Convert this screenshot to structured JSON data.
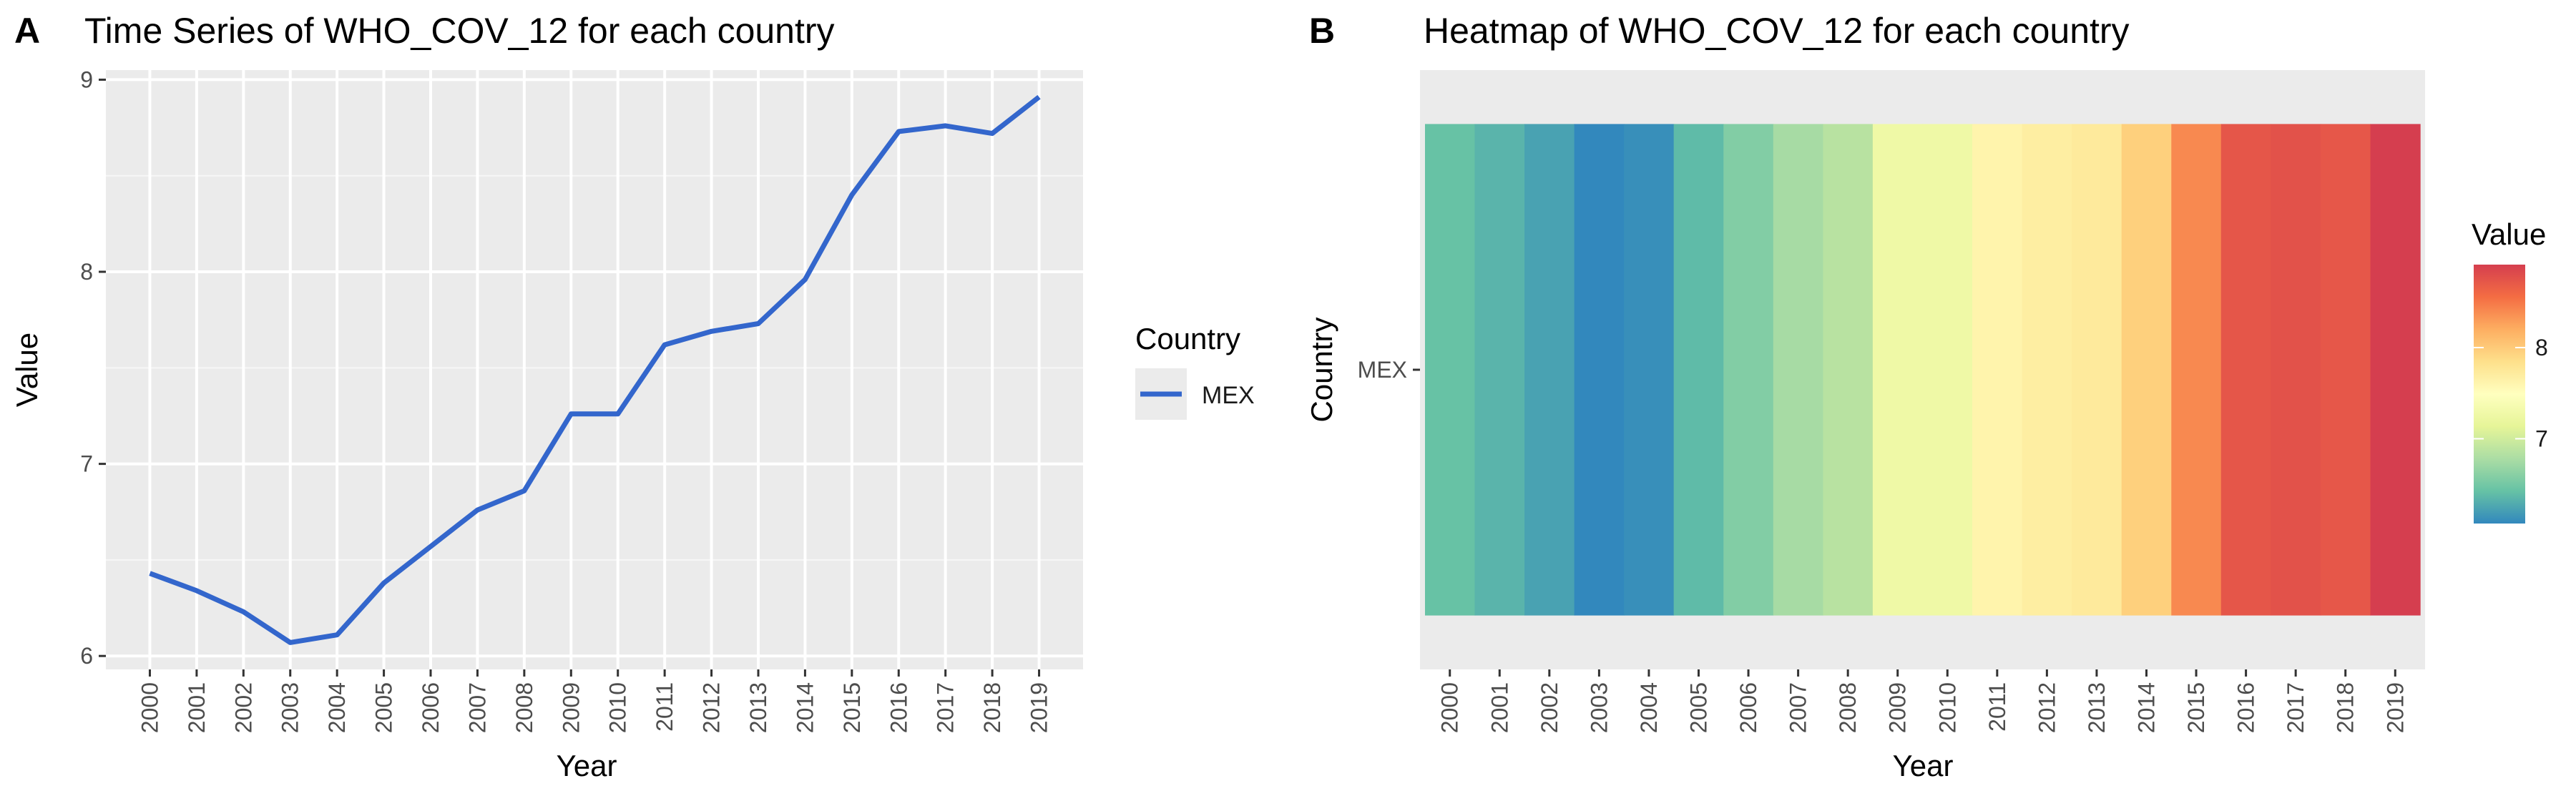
{
  "panels": {
    "a": {
      "tag": "A",
      "title": "Time Series of WHO_COV_12 for each country"
    },
    "b": {
      "tag": "B",
      "title": "Heatmap of WHO_COV_12 for each country"
    }
  },
  "legends": {
    "line": {
      "title": "Country",
      "entry": "MEX",
      "color": "#3366CC"
    },
    "fill": {
      "title": "Value",
      "ticks": [
        "7",
        "8"
      ]
    }
  },
  "chart_data": [
    {
      "type": "line",
      "title": "Time Series of WHO_COV_12 for each country",
      "xlabel": "Year",
      "ylabel": "Value",
      "x": [
        "2000",
        "2001",
        "2002",
        "2003",
        "2004",
        "2005",
        "2006",
        "2007",
        "2008",
        "2009",
        "2010",
        "2011",
        "2012",
        "2013",
        "2014",
        "2015",
        "2016",
        "2017",
        "2018",
        "2019"
      ],
      "series": [
        {
          "name": "MEX",
          "color": "#3366CC",
          "values": [
            6.43,
            6.34,
            6.23,
            6.07,
            6.11,
            6.38,
            6.57,
            6.76,
            6.86,
            7.26,
            7.26,
            7.62,
            7.69,
            7.73,
            7.96,
            8.4,
            8.73,
            8.76,
            8.72,
            8.91
          ]
        }
      ],
      "yticks": [
        "6",
        "7",
        "8",
        "9"
      ],
      "ylim": [
        5.93,
        9.05
      ],
      "grid": true,
      "legend_position": "right"
    },
    {
      "type": "heatmap",
      "title": "Heatmap of WHO_COV_12 for each country",
      "xlabel": "Year",
      "ylabel": "Country",
      "x": [
        "2000",
        "2001",
        "2002",
        "2003",
        "2004",
        "2005",
        "2006",
        "2007",
        "2008",
        "2009",
        "2010",
        "2011",
        "2012",
        "2013",
        "2014",
        "2015",
        "2016",
        "2017",
        "2018",
        "2019"
      ],
      "y": [
        "MEX"
      ],
      "values": [
        [
          6.43,
          6.34,
          6.23,
          6.07,
          6.11,
          6.38,
          6.57,
          6.76,
          6.86,
          7.26,
          7.26,
          7.62,
          7.69,
          7.73,
          7.96,
          8.4,
          8.73,
          8.76,
          8.72,
          8.91
        ]
      ],
      "color_scale": "Spectral (reversed)",
      "color_range": [
        6.07,
        8.91
      ],
      "legend_ticks": [
        "7",
        "8"
      ],
      "legend_position": "right"
    }
  ]
}
